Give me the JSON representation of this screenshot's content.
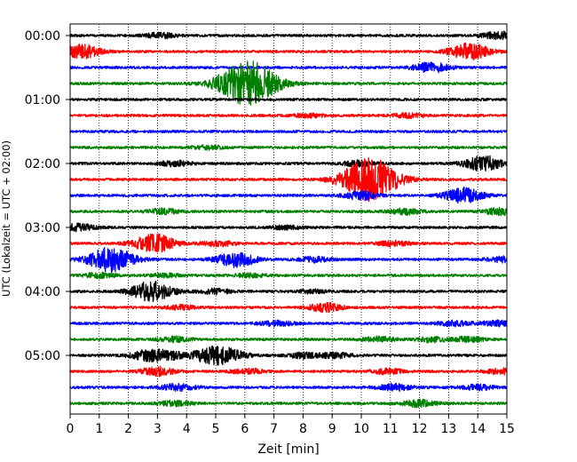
{
  "chart_data": {
    "type": "line",
    "title": "",
    "xlabel": "Zeit  [min]",
    "ylabel": "UTC (Lokalzeit = UTC + 02:00)",
    "xlim": [
      0,
      15
    ],
    "x_ticks": [
      "0",
      "1",
      "2",
      "3",
      "4",
      "5",
      "6",
      "7",
      "8",
      "9",
      "10",
      "11",
      "12",
      "13",
      "14",
      "15"
    ],
    "y_ticks": [
      "00:00",
      "01:00",
      "02:00",
      "03:00",
      "04:00",
      "05:00"
    ],
    "ylim_minutes": [
      0,
      360
    ],
    "row_interval_min": 15,
    "grid": "vertical-dotted",
    "colors": {
      "black": "#000000",
      "red": "#ff0000",
      "blue": "#0000ff",
      "green": "#008000"
    },
    "series": [
      {
        "start": "00:00",
        "color": "#000000",
        "events": [
          {
            "t": 3.1,
            "a": 0.3
          },
          {
            "t": 14.8,
            "a": 0.5
          }
        ]
      },
      {
        "start": "00:15",
        "color": "#ff0000",
        "events": [
          {
            "t": 0.4,
            "a": 0.8
          },
          {
            "t": 13.7,
            "a": 1.0
          }
        ]
      },
      {
        "start": "00:30",
        "color": "#0000ff",
        "events": [
          {
            "t": 12.4,
            "a": 0.6
          }
        ]
      },
      {
        "start": "00:45",
        "color": "#008000",
        "events": [
          {
            "t": 6.1,
            "a": 2.8
          }
        ]
      },
      {
        "start": "01:00",
        "color": "#000000",
        "events": []
      },
      {
        "start": "01:15",
        "color": "#ff0000",
        "events": [
          {
            "t": 8.2,
            "a": 0.2
          },
          {
            "t": 11.6,
            "a": 0.25
          }
        ]
      },
      {
        "start": "01:30",
        "color": "#0000ff",
        "events": []
      },
      {
        "start": "01:45",
        "color": "#008000",
        "events": [
          {
            "t": 4.7,
            "a": 0.2
          }
        ]
      },
      {
        "start": "02:00",
        "color": "#000000",
        "events": [
          {
            "t": 3.6,
            "a": 0.3
          },
          {
            "t": 9.9,
            "a": 0.3
          },
          {
            "t": 14.2,
            "a": 0.9
          }
        ]
      },
      {
        "start": "02:15",
        "color": "#ff0000",
        "events": [
          {
            "t": 10.3,
            "a": 2.6
          }
        ]
      },
      {
        "start": "02:30",
        "color": "#0000ff",
        "events": [
          {
            "t": 10.0,
            "a": 0.5
          },
          {
            "t": 13.5,
            "a": 0.9
          }
        ]
      },
      {
        "start": "02:45",
        "color": "#008000",
        "events": [
          {
            "t": 3.2,
            "a": 0.3
          },
          {
            "t": 11.5,
            "a": 0.35
          },
          {
            "t": 14.8,
            "a": 0.4
          }
        ]
      },
      {
        "start": "03:00",
        "color": "#000000",
        "events": [
          {
            "t": 0.3,
            "a": 0.4
          },
          {
            "t": 7.4,
            "a": 0.2
          }
        ]
      },
      {
        "start": "03:15",
        "color": "#ff0000",
        "events": [
          {
            "t": 2.9,
            "a": 1.1
          },
          {
            "t": 5.1,
            "a": 0.3
          },
          {
            "t": 11.1,
            "a": 0.3
          }
        ]
      },
      {
        "start": "03:30",
        "color": "#0000ff",
        "events": [
          {
            "t": 1.4,
            "a": 1.5
          },
          {
            "t": 5.7,
            "a": 0.9
          },
          {
            "t": 8.4,
            "a": 0.3
          },
          {
            "t": 14.9,
            "a": 0.3
          }
        ]
      },
      {
        "start": "03:45",
        "color": "#008000",
        "events": [
          {
            "t": 1.0,
            "a": 0.3
          },
          {
            "t": 3.3,
            "a": 0.2
          },
          {
            "t": 6.2,
            "a": 0.2
          }
        ]
      },
      {
        "start": "04:00",
        "color": "#000000",
        "events": [
          {
            "t": 2.8,
            "a": 1.2
          },
          {
            "t": 5.0,
            "a": 0.3
          },
          {
            "t": 8.3,
            "a": 0.2
          }
        ]
      },
      {
        "start": "04:15",
        "color": "#ff0000",
        "events": [
          {
            "t": 3.8,
            "a": 0.25
          },
          {
            "t": 8.7,
            "a": 0.25
          },
          {
            "t": 8.9,
            "a": 0.3
          }
        ]
      },
      {
        "start": "04:30",
        "color": "#0000ff",
        "events": [
          {
            "t": 7.1,
            "a": 0.3
          },
          {
            "t": 13.2,
            "a": 0.3
          },
          {
            "t": 14.7,
            "a": 0.3
          }
        ]
      },
      {
        "start": "04:45",
        "color": "#008000",
        "events": [
          {
            "t": 3.6,
            "a": 0.3
          },
          {
            "t": 10.6,
            "a": 0.3
          },
          {
            "t": 12.4,
            "a": 0.3
          },
          {
            "t": 13.7,
            "a": 0.3
          }
        ]
      },
      {
        "start": "05:00",
        "color": "#000000",
        "events": [
          {
            "t": 2.6,
            "a": 0.5
          },
          {
            "t": 3.3,
            "a": 0.5
          },
          {
            "t": 4.9,
            "a": 1.0
          },
          {
            "t": 5.6,
            "a": 0.4
          },
          {
            "t": 8.0,
            "a": 0.3
          },
          {
            "t": 9.1,
            "a": 0.3
          }
        ]
      },
      {
        "start": "05:15",
        "color": "#ff0000",
        "events": [
          {
            "t": 3.0,
            "a": 0.5
          },
          {
            "t": 6.1,
            "a": 0.3
          },
          {
            "t": 10.9,
            "a": 0.3
          },
          {
            "t": 14.8,
            "a": 0.3
          }
        ]
      },
      {
        "start": "05:30",
        "color": "#0000ff",
        "events": [
          {
            "t": 3.7,
            "a": 0.4
          },
          {
            "t": 11.1,
            "a": 0.4
          },
          {
            "t": 14.0,
            "a": 0.3
          }
        ]
      },
      {
        "start": "05:45",
        "color": "#008000",
        "events": [
          {
            "t": 3.6,
            "a": 0.3
          },
          {
            "t": 12.0,
            "a": 0.4
          }
        ]
      }
    ]
  }
}
